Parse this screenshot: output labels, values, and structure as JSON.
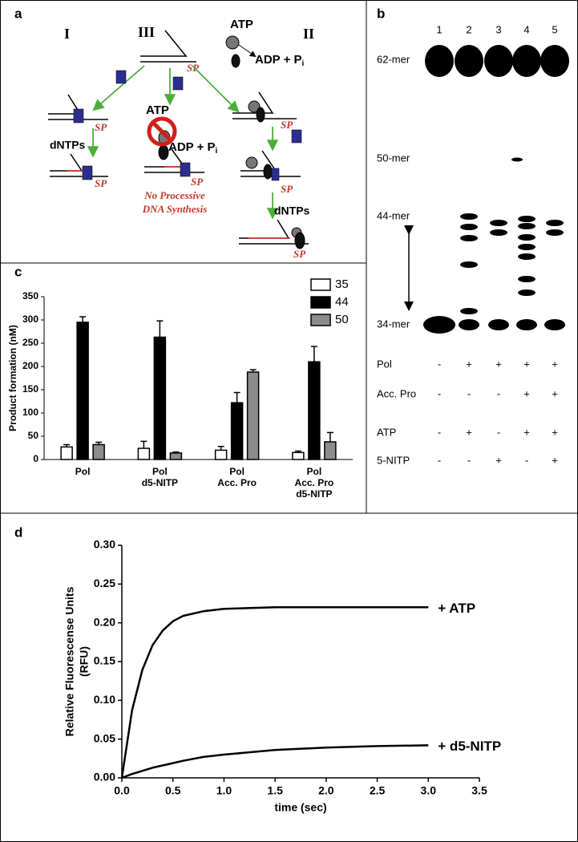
{
  "panel_a": {
    "label": "a",
    "schemes": [
      "I",
      "III",
      "II"
    ],
    "sp": "SP",
    "atp": "ATP",
    "adp": "ADP + P",
    "pi": "i",
    "dntps": "dNTPs",
    "note": [
      "No Processive",
      "DNA Synthesis"
    ]
  },
  "panel_b": {
    "label": "b",
    "lanes": [
      "1",
      "2",
      "3",
      "4",
      "5"
    ],
    "markers": [
      "62-mer",
      "50-mer",
      "44-mer",
      "34-mer"
    ],
    "rows": [
      {
        "label": "Pol",
        "marks": [
          "-",
          "+",
          "+",
          "+",
          "+"
        ]
      },
      {
        "label": "Acc. Pro",
        "marks": [
          "-",
          "-",
          "-",
          "+",
          "+"
        ]
      },
      {
        "label": "ATP",
        "marks": [
          "-",
          "+",
          "-",
          "+",
          "+"
        ]
      },
      {
        "label": "5-NITP",
        "marks": [
          "-",
          "-",
          "+",
          "-",
          "+"
        ]
      }
    ]
  },
  "chart_data": [
    {
      "type": "bar",
      "panel": "c",
      "y_label": "Product formation (nM)",
      "categories": [
        [
          "Pol"
        ],
        [
          "Pol",
          "d5-NITP"
        ],
        [
          "Pol",
          "Acc. Pro"
        ],
        [
          "Pol",
          "Acc. Pro",
          "d5-NITP"
        ]
      ],
      "series": [
        {
          "name": "35",
          "color": "#ffffff",
          "values": [
            27,
            24,
            20,
            15
          ],
          "errors": [
            5,
            15,
            8,
            3
          ]
        },
        {
          "name": "44",
          "color": "#000000",
          "values": [
            295,
            263,
            122,
            210
          ],
          "errors": [
            12,
            35,
            22,
            33
          ]
        },
        {
          "name": "50",
          "color": "#8c8c8c",
          "values": [
            32,
            14,
            188,
            38
          ],
          "errors": [
            5,
            2,
            5,
            20
          ]
        }
      ],
      "ylim": [
        0,
        350
      ],
      "yticks": [
        0,
        50,
        100,
        150,
        200,
        250,
        300,
        350
      ],
      "legend": "top-right"
    },
    {
      "type": "line",
      "panel": "d",
      "x_label": "time (sec)",
      "y_label": [
        "Relative Fluorescense Units",
        "(RFU)"
      ],
      "x": [
        0,
        0.1,
        0.2,
        0.3,
        0.4,
        0.5,
        0.6,
        0.8,
        1.0,
        1.5,
        2.0,
        2.5,
        3.0
      ],
      "series": [
        {
          "name": "+ ATP",
          "color": "#000000",
          "values": [
            0,
            0.087,
            0.139,
            0.171,
            0.19,
            0.202,
            0.209,
            0.215,
            0.218,
            0.22,
            0.22,
            0.22,
            0.22
          ]
        },
        {
          "name": "+ d5-NITP",
          "color": "#000000",
          "values": [
            0,
            0.005,
            0.009,
            0.013,
            0.016,
            0.019,
            0.022,
            0.027,
            0.03,
            0.036,
            0.039,
            0.041,
            0.042
          ]
        }
      ],
      "xlim": [
        0,
        3.5
      ],
      "xticks": [
        {
          "value": 0,
          "label": "0.0"
        },
        {
          "value": 0.5,
          "label": "0.5"
        },
        {
          "value": 1,
          "label": "1.0"
        },
        {
          "value": 1.5,
          "label": "1.5"
        },
        {
          "value": 2,
          "label": "2.0"
        },
        {
          "value": 2.5,
          "label": "2.5"
        },
        {
          "value": 3,
          "label": "3.0"
        },
        {
          "value": 3.5,
          "label": "3.5"
        }
      ],
      "ylim": [
        0,
        0.3
      ],
      "yticks": [
        {
          "value": 0,
          "label": "0.00"
        },
        {
          "value": 0.05,
          "label": "0.05"
        },
        {
          "value": 0.1,
          "label": "0.10"
        },
        {
          "value": 0.15,
          "label": "0.15"
        },
        {
          "value": 0.2,
          "label": "0.20"
        },
        {
          "value": 0.25,
          "label": "0.25"
        },
        {
          "value": 0.3,
          "label": "0.30"
        }
      ]
    }
  ]
}
